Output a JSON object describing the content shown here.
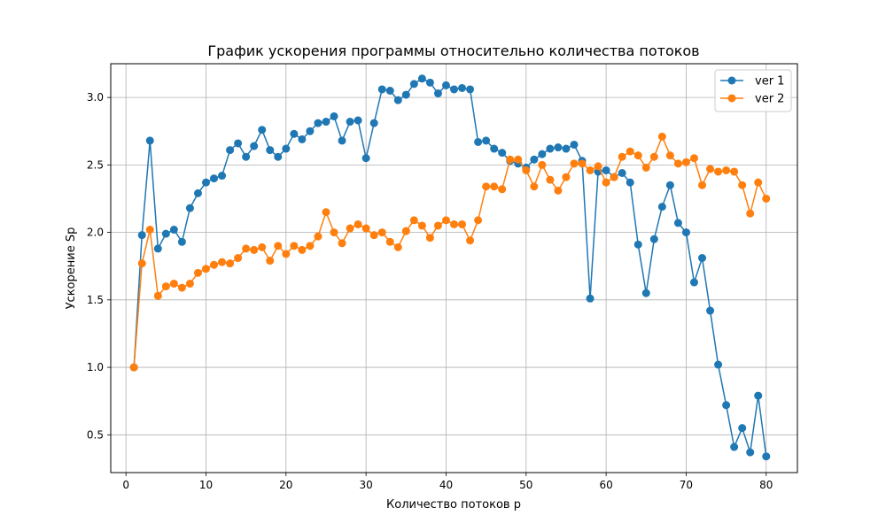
{
  "chart_data": {
    "type": "line",
    "title": "График ускорения программы относительно количества потоков",
    "xlabel": "Количество потоков p",
    "ylabel": "Ускорение Sp",
    "xlim": [
      -1.9,
      83.9
    ],
    "ylim": [
      0.22,
      3.25
    ],
    "xticks": [
      0,
      10,
      20,
      30,
      40,
      50,
      60,
      70,
      80
    ],
    "yticks": [
      0.5,
      1.0,
      1.5,
      2.0,
      2.5,
      3.0
    ],
    "xtick_labels": [
      "0",
      "10",
      "20",
      "30",
      "40",
      "50",
      "60",
      "70",
      "80"
    ],
    "ytick_labels": [
      "0.5",
      "1.0",
      "1.5",
      "2.0",
      "2.5",
      "3.0"
    ],
    "grid": true,
    "legend_position": "top-right",
    "x": [
      1,
      2,
      3,
      4,
      5,
      6,
      7,
      8,
      9,
      10,
      11,
      12,
      13,
      14,
      15,
      16,
      17,
      18,
      19,
      20,
      21,
      22,
      23,
      24,
      25,
      26,
      27,
      28,
      29,
      30,
      31,
      32,
      33,
      34,
      35,
      36,
      37,
      38,
      39,
      40,
      41,
      42,
      43,
      44,
      45,
      46,
      47,
      48,
      49,
      50,
      51,
      52,
      53,
      54,
      55,
      56,
      57,
      58,
      59,
      60,
      61,
      62,
      63,
      64,
      65,
      66,
      67,
      68,
      69,
      70,
      71,
      72,
      73,
      74,
      75,
      76,
      77,
      78,
      79,
      80
    ],
    "series": [
      {
        "name": "ver 1",
        "color": "#1f77b4",
        "values": [
          1.0,
          1.98,
          2.68,
          1.88,
          1.99,
          2.02,
          1.93,
          2.18,
          2.29,
          2.37,
          2.4,
          2.42,
          2.61,
          2.66,
          2.56,
          2.64,
          2.76,
          2.61,
          2.56,
          2.62,
          2.73,
          2.69,
          2.75,
          2.81,
          2.82,
          2.86,
          2.68,
          2.82,
          2.83,
          2.55,
          2.81,
          3.06,
          3.05,
          2.98,
          3.02,
          3.1,
          3.14,
          3.11,
          3.03,
          3.09,
          3.06,
          3.07,
          3.06,
          2.67,
          2.68,
          2.62,
          2.59,
          2.53,
          2.51,
          2.48,
          2.54,
          2.58,
          2.62,
          2.63,
          2.62,
          2.65,
          2.53,
          1.51,
          2.45,
          2.46,
          2.41,
          2.44,
          2.37,
          1.91,
          1.55,
          1.95,
          2.19,
          2.35,
          2.07,
          2.0,
          1.63,
          1.81,
          1.42,
          1.02,
          0.72,
          0.41,
          0.55,
          0.37,
          0.79,
          0.34
        ]
      },
      {
        "name": "ver 2",
        "color": "#ff7f0e",
        "values": [
          1.0,
          1.77,
          2.02,
          1.53,
          1.6,
          1.62,
          1.59,
          1.62,
          1.7,
          1.73,
          1.76,
          1.78,
          1.77,
          1.81,
          1.88,
          1.87,
          1.89,
          1.79,
          1.9,
          1.84,
          1.9,
          1.87,
          1.9,
          1.97,
          2.15,
          2.0,
          1.92,
          2.03,
          2.06,
          2.03,
          1.98,
          2.0,
          1.93,
          1.89,
          2.01,
          2.09,
          2.05,
          1.96,
          2.05,
          2.09,
          2.06,
          2.06,
          1.94,
          2.09,
          2.34,
          2.34,
          2.32,
          2.54,
          2.54,
          2.46,
          2.34,
          2.5,
          2.39,
          2.31,
          2.41,
          2.51,
          2.51,
          2.46,
          2.49,
          2.37,
          2.41,
          2.56,
          2.6,
          2.57,
          2.48,
          2.56,
          2.71,
          2.57,
          2.51,
          2.52,
          2.55,
          2.35,
          2.47,
          2.45,
          2.46,
          2.45,
          2.35,
          2.14,
          2.37,
          2.25
        ]
      }
    ]
  }
}
